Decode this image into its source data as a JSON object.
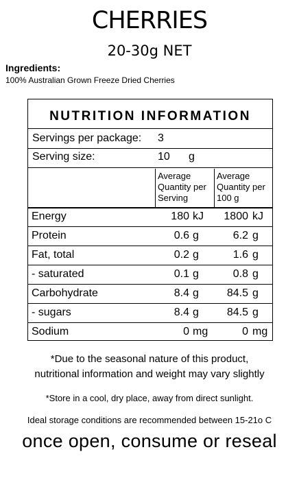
{
  "product": {
    "name": "CHERRIES",
    "weight": "20-30g NET"
  },
  "ingredients": {
    "title": "Ingredients:",
    "text": "100% Australian Grown Freeze Dried Cherries"
  },
  "panel": {
    "title": "NUTRITION INFORMATION",
    "servings_label": "Servings per package:",
    "servings_value": "3",
    "serving_size_label": "Serving size:",
    "serving_size_value": "10",
    "serving_size_unit": "g",
    "col1": [
      "Average",
      "Quantity per",
      "Serving"
    ],
    "col2": [
      "Average",
      "Quantity per",
      "100 g"
    ],
    "rows": [
      {
        "label": "Energy",
        "v1": "180",
        "u1": "kJ",
        "v2": "1800",
        "u2": "kJ"
      },
      {
        "label": "Protein",
        "v1": "0.6",
        "u1": "g",
        "v2": "6.2",
        "u2": "g"
      },
      {
        "label": "Fat, total",
        "v1": "0.2",
        "u1": "g",
        "v2": "1.6",
        "u2": "g"
      },
      {
        "label": "- saturated",
        "v1": "0.1",
        "u1": "g",
        "v2": "0.8",
        "u2": "g"
      },
      {
        "label": "Carbohydrate",
        "v1": "8.4",
        "u1": "g",
        "v2": "84.5",
        "u2": "g"
      },
      {
        "label": "- sugars",
        "v1": "8.4",
        "u1": "g",
        "v2": "84.5",
        "u2": "g"
      },
      {
        "label": "Sodium",
        "v1": "0",
        "u1": "mg",
        "v2": "0",
        "u2": "mg"
      }
    ]
  },
  "notes": {
    "seasonal_1": "*Due to the seasonal nature of this product,",
    "seasonal_2": "nutritional information and weight may vary slightly",
    "store": "*Store in a cool, dry place, away from direct sunlight.",
    "ideal": "Ideal storage conditions are recommended between 15-21o C",
    "reseal": "once open, consume or reseal"
  }
}
